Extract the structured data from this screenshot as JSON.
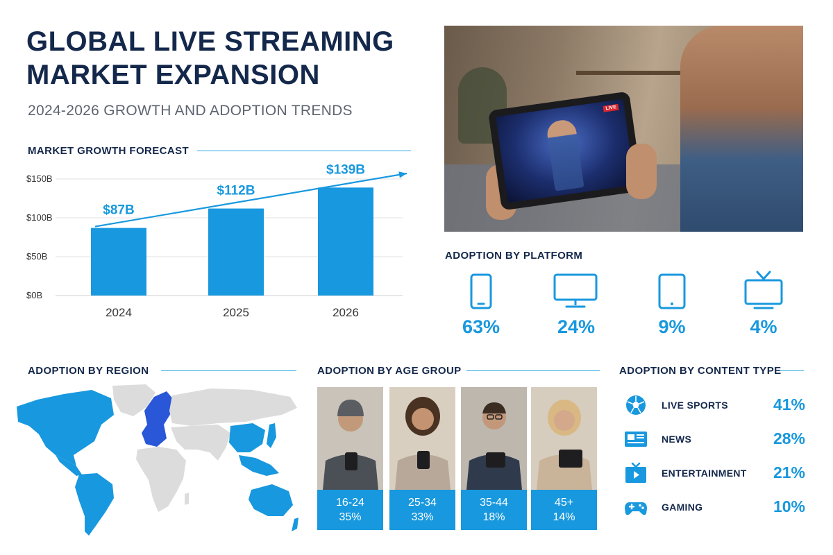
{
  "header": {
    "title": "GLOBAL LIVE STREAMING MARKET EXPANSION",
    "subtitle": "2024-2026 GROWTH AND ADOPTION TRENDS"
  },
  "colors": {
    "primary": "#1898de",
    "navy": "#14284b",
    "europe": "#2a57d8",
    "land": "#dcdcdc"
  },
  "hero_photo": {
    "overlay_badge": "LIVE"
  },
  "chart_data": [
    {
      "type": "bar",
      "title": "MARKET GROWTH FORECAST",
      "categories": [
        "2024",
        "2025",
        "2026"
      ],
      "values": [
        87,
        112,
        139
      ],
      "value_labels": [
        "$87B",
        "$112B",
        "$139B"
      ],
      "y_ticks": [
        "$0B",
        "$50B",
        "$100B",
        "$150B"
      ],
      "ylim": [
        0,
        150
      ],
      "grid": false,
      "trend_arrow": true
    },
    {
      "type": "table",
      "title": "ADOPTION BY PLATFORM",
      "rows": [
        {
          "icon": "smartphone-icon",
          "value": "63%"
        },
        {
          "icon": "monitor-icon",
          "value": "24%"
        },
        {
          "icon": "tablet-icon",
          "value": "9%"
        },
        {
          "icon": "tv-icon",
          "value": "4%"
        }
      ]
    },
    {
      "type": "bar",
      "title": "ADOPTION BY AGE GROUP",
      "categories": [
        "16-24",
        "25-34",
        "35-44",
        "45+"
      ],
      "values": [
        35,
        33,
        18,
        14
      ],
      "value_labels": [
        "35%",
        "33%",
        "18%",
        "14%"
      ]
    },
    {
      "type": "table",
      "title": "ADOPTION BY CONTENT TYPE",
      "rows": [
        {
          "icon": "soccer-ball-icon",
          "label": "LIVE SPORTS",
          "value": "41%"
        },
        {
          "icon": "newspaper-icon",
          "label": "NEWS",
          "value": "28%"
        },
        {
          "icon": "play-screen-icon",
          "label": "ENTERTAINMENT",
          "value": "21%"
        },
        {
          "icon": "gamepad-icon",
          "label": "GAMING",
          "value": "10%"
        }
      ]
    }
  ],
  "region": {
    "title": "ADOPTION BY REGION",
    "highlighted_regions": [
      "North America",
      "South America",
      "Europe",
      "East Asia",
      "Southeast Asia",
      "Australia"
    ]
  }
}
